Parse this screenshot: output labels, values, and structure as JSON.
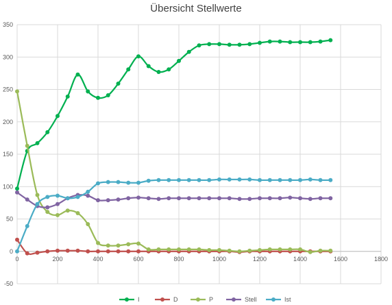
{
  "chart_data": {
    "type": "line",
    "title": "Übersicht Stellwerte",
    "xlabel": "",
    "ylabel": "",
    "xlim": [
      0,
      1800
    ],
    "ylim": [
      -50,
      350
    ],
    "xticks": [
      0,
      200,
      400,
      600,
      800,
      1000,
      1200,
      1400,
      1600,
      1800
    ],
    "yticks": [
      -50,
      0,
      50,
      100,
      150,
      200,
      250,
      300,
      350
    ],
    "grid": "both",
    "legend_position": "bottom",
    "series": [
      {
        "name": "I",
        "color": "#00b050",
        "points": [
          [
            0,
            97
          ],
          [
            50,
            155
          ],
          [
            100,
            167
          ],
          [
            150,
            184
          ],
          [
            200,
            209
          ],
          [
            250,
            239
          ],
          [
            300,
            273
          ],
          [
            350,
            247
          ],
          [
            400,
            237
          ],
          [
            450,
            241
          ],
          [
            500,
            259
          ],
          [
            550,
            281
          ],
          [
            600,
            301
          ],
          [
            650,
            286
          ],
          [
            700,
            277
          ],
          [
            750,
            281
          ],
          [
            800,
            294
          ],
          [
            850,
            308
          ],
          [
            900,
            318
          ],
          [
            950,
            320
          ],
          [
            1000,
            320
          ],
          [
            1050,
            319
          ],
          [
            1100,
            319
          ],
          [
            1150,
            320
          ],
          [
            1200,
            322
          ],
          [
            1250,
            324
          ],
          [
            1300,
            324
          ],
          [
            1350,
            323
          ],
          [
            1400,
            323
          ],
          [
            1450,
            323
          ],
          [
            1500,
            324
          ],
          [
            1550,
            326
          ]
        ]
      },
      {
        "name": "D",
        "color": "#c0504d",
        "points": [
          [
            0,
            18
          ],
          [
            50,
            -3
          ],
          [
            100,
            -2
          ],
          [
            150,
            0
          ],
          [
            200,
            1
          ],
          [
            250,
            1
          ],
          [
            300,
            1
          ],
          [
            350,
            0
          ],
          [
            400,
            0
          ],
          [
            450,
            0
          ],
          [
            500,
            0
          ],
          [
            550,
            0
          ],
          [
            600,
            0
          ],
          [
            650,
            0
          ],
          [
            700,
            0
          ],
          [
            750,
            0
          ],
          [
            800,
            0
          ],
          [
            850,
            0
          ],
          [
            900,
            0
          ],
          [
            950,
            0
          ],
          [
            1000,
            0
          ],
          [
            1050,
            0
          ],
          [
            1100,
            -1
          ],
          [
            1150,
            0
          ],
          [
            1200,
            0
          ],
          [
            1250,
            0
          ],
          [
            1300,
            0
          ],
          [
            1350,
            0
          ],
          [
            1400,
            0
          ],
          [
            1450,
            0
          ],
          [
            1500,
            0
          ],
          [
            1550,
            0
          ]
        ]
      },
      {
        "name": "P",
        "color": "#9bbb59",
        "points": [
          [
            0,
            247
          ],
          [
            50,
            163
          ],
          [
            100,
            87
          ],
          [
            150,
            61
          ],
          [
            200,
            56
          ],
          [
            250,
            63
          ],
          [
            300,
            59
          ],
          [
            350,
            42
          ],
          [
            400,
            13
          ],
          [
            450,
            9
          ],
          [
            500,
            9
          ],
          [
            550,
            11
          ],
          [
            600,
            12
          ],
          [
            650,
            3
          ],
          [
            700,
            3
          ],
          [
            750,
            3
          ],
          [
            800,
            3
          ],
          [
            850,
            3
          ],
          [
            900,
            3
          ],
          [
            950,
            2
          ],
          [
            1000,
            2
          ],
          [
            1050,
            1
          ],
          [
            1100,
            0
          ],
          [
            1150,
            1
          ],
          [
            1200,
            2
          ],
          [
            1250,
            3
          ],
          [
            1300,
            3
          ],
          [
            1350,
            3
          ],
          [
            1400,
            3
          ],
          [
            1450,
            -1
          ],
          [
            1500,
            1
          ],
          [
            1550,
            1
          ]
        ]
      },
      {
        "name": "Stell",
        "color": "#8064a2",
        "points": [
          [
            0,
            91
          ],
          [
            50,
            80
          ],
          [
            100,
            70
          ],
          [
            150,
            68
          ],
          [
            200,
            73
          ],
          [
            250,
            82
          ],
          [
            300,
            87
          ],
          [
            350,
            86
          ],
          [
            400,
            79
          ],
          [
            450,
            79
          ],
          [
            500,
            80
          ],
          [
            550,
            82
          ],
          [
            600,
            83
          ],
          [
            650,
            82
          ],
          [
            700,
            81
          ],
          [
            750,
            82
          ],
          [
            800,
            82
          ],
          [
            850,
            82
          ],
          [
            900,
            82
          ],
          [
            950,
            82
          ],
          [
            1000,
            82
          ],
          [
            1050,
            82
          ],
          [
            1100,
            81
          ],
          [
            1150,
            81
          ],
          [
            1200,
            82
          ],
          [
            1250,
            82
          ],
          [
            1300,
            82
          ],
          [
            1350,
            83
          ],
          [
            1400,
            82
          ],
          [
            1450,
            81
          ],
          [
            1500,
            82
          ],
          [
            1550,
            82
          ]
        ]
      },
      {
        "name": "Ist",
        "color": "#4bacc6",
        "points": [
          [
            0,
            0
          ],
          [
            50,
            39
          ],
          [
            100,
            73
          ],
          [
            150,
            84
          ],
          [
            200,
            86
          ],
          [
            250,
            82
          ],
          [
            300,
            84
          ],
          [
            350,
            92
          ],
          [
            400,
            105
          ],
          [
            450,
            107
          ],
          [
            500,
            107
          ],
          [
            550,
            106
          ],
          [
            600,
            106
          ],
          [
            650,
            109
          ],
          [
            700,
            110
          ],
          [
            750,
            110
          ],
          [
            800,
            110
          ],
          [
            850,
            110
          ],
          [
            900,
            110
          ],
          [
            950,
            110
          ],
          [
            1000,
            111
          ],
          [
            1050,
            111
          ],
          [
            1100,
            111
          ],
          [
            1150,
            111
          ],
          [
            1200,
            110
          ],
          [
            1250,
            110
          ],
          [
            1300,
            110
          ],
          [
            1350,
            110
          ],
          [
            1400,
            110
          ],
          [
            1450,
            111
          ],
          [
            1500,
            110
          ],
          [
            1550,
            110
          ]
        ]
      }
    ]
  }
}
